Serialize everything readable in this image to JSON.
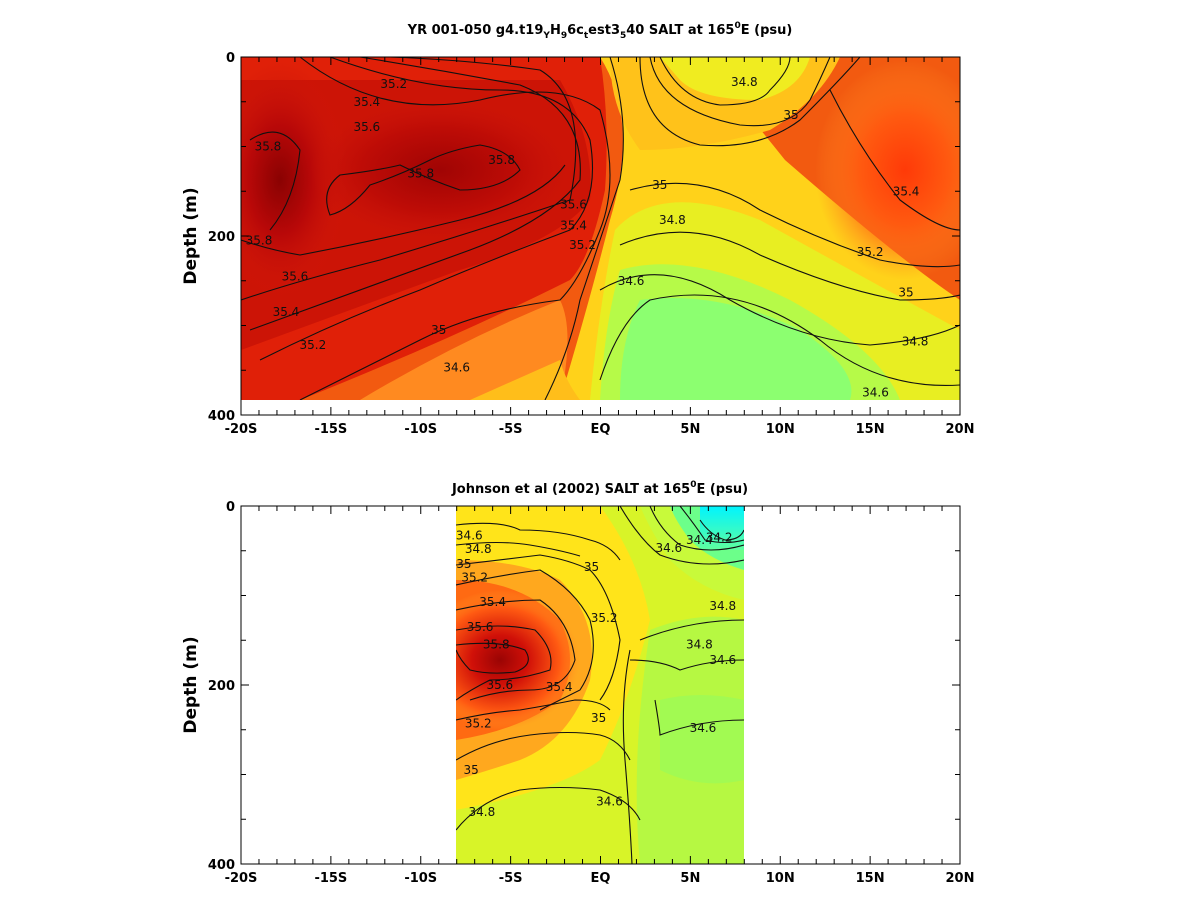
{
  "chart_data": [
    {
      "type": "heatmap",
      "title_main": "YR 001-050 g4.t19",
      "title_sub1": "Y",
      "title_mid1": "H",
      "title_sub2": "9",
      "title_mid2": "6c",
      "title_sub3": "t",
      "title_mid3": "est3",
      "title_sub4": "5",
      "title_mid4": "40 SALT at 165",
      "title_sup": "0",
      "title_end": "E (psu)",
      "ylabel": "Depth (m)",
      "x_ticks": [
        "-20S",
        "-15S",
        "-10S",
        "-5S",
        "EQ",
        "5N",
        "10N",
        "15N",
        "20N"
      ],
      "y_ticks": [
        "0",
        "200",
        "400"
      ],
      "xlim": [
        -20,
        20
      ],
      "ylim": [
        0,
        400
      ],
      "y_reversed": true,
      "data_extent": {
        "lat": [
          -20,
          20
        ],
        "depth": [
          0,
          385
        ]
      },
      "colorscale": "salinity: cyan 34.2 – green 34.6 – yellow 34.9 – orange 35.2 – red 35.6 – dark red 35.9",
      "contour_levels": [
        34.6,
        34.8,
        35,
        35.2,
        35.4,
        35.6,
        35.8
      ],
      "contour_labels": [
        {
          "text": "35.2",
          "lat": -11.5,
          "depth": 30
        },
        {
          "text": "35.4",
          "lat": -13,
          "depth": 50
        },
        {
          "text": "35.6",
          "lat": -13,
          "depth": 78
        },
        {
          "text": "35.8",
          "lat": -18.5,
          "depth": 100
        },
        {
          "text": "35.8",
          "lat": -10,
          "depth": 130
        },
        {
          "text": "35.8",
          "lat": -5.5,
          "depth": 115
        },
        {
          "text": "35.6",
          "lat": -1.5,
          "depth": 165
        },
        {
          "text": "35.4",
          "lat": -1.5,
          "depth": 188
        },
        {
          "text": "35.2",
          "lat": -1,
          "depth": 210
        },
        {
          "text": "35.8",
          "lat": -19,
          "depth": 205
        },
        {
          "text": "35.6",
          "lat": -17,
          "depth": 245
        },
        {
          "text": "35.4",
          "lat": -17.5,
          "depth": 285
        },
        {
          "text": "35.2",
          "lat": -16,
          "depth": 322
        },
        {
          "text": "35",
          "lat": -9,
          "depth": 305
        },
        {
          "text": "34.6",
          "lat": -8,
          "depth": 347
        },
        {
          "text": "34.6",
          "lat": 1.7,
          "depth": 250
        },
        {
          "text": "34.8",
          "lat": 8,
          "depth": 28
        },
        {
          "text": "35",
          "lat": 10.6,
          "depth": 65
        },
        {
          "text": "35",
          "lat": 3.3,
          "depth": 143
        },
        {
          "text": "34.8",
          "lat": 4,
          "depth": 182
        },
        {
          "text": "35.4",
          "lat": 17,
          "depth": 150
        },
        {
          "text": "35.2",
          "lat": 15,
          "depth": 218
        },
        {
          "text": "35",
          "lat": 17,
          "depth": 263
        },
        {
          "text": "34.8",
          "lat": 17.5,
          "depth": 318
        },
        {
          "text": "34.6",
          "lat": 15.3,
          "depth": 375
        }
      ]
    },
    {
      "type": "heatmap",
      "title_main": "Johnson et al (2002) SALT at 165",
      "title_sup": "0",
      "title_end": "E (psu)",
      "ylabel": "Depth (m)",
      "x_ticks": [
        "-20S",
        "-15S",
        "-10S",
        "-5S",
        "EQ",
        "5N",
        "10N",
        "15N",
        "20N"
      ],
      "y_ticks": [
        "0",
        "200",
        "400"
      ],
      "xlim": [
        -20,
        20
      ],
      "ylim": [
        0,
        400
      ],
      "y_reversed": true,
      "data_extent": {
        "lat": [
          -8,
          8
        ],
        "depth": [
          0,
          400
        ]
      },
      "colorscale": "salinity: cyan 34.2 – green 34.6 – yellow 34.9 – orange 35.2 – red 35.6 – dark red 35.9",
      "contour_levels": [
        34.2,
        34.4,
        34.6,
        34.8,
        35,
        35.2,
        35.4,
        35.6,
        35.8
      ],
      "contour_labels": [
        {
          "text": "34.6",
          "lat": -7.3,
          "depth": 33
        },
        {
          "text": "34.8",
          "lat": -6.8,
          "depth": 48
        },
        {
          "text": "35",
          "lat": -7.6,
          "depth": 65
        },
        {
          "text": "35.2",
          "lat": -7,
          "depth": 80
        },
        {
          "text": "35.4",
          "lat": -6,
          "depth": 107
        },
        {
          "text": "35.6",
          "lat": -6.7,
          "depth": 135
        },
        {
          "text": "35.8",
          "lat": -5.8,
          "depth": 155
        },
        {
          "text": "35.6",
          "lat": -5.6,
          "depth": 200
        },
        {
          "text": "35.4",
          "lat": -2.3,
          "depth": 202
        },
        {
          "text": "35.2",
          "lat": 0.2,
          "depth": 125
        },
        {
          "text": "35",
          "lat": -0.5,
          "depth": 68
        },
        {
          "text": "35.2",
          "lat": -6.8,
          "depth": 243
        },
        {
          "text": "35",
          "lat": -7.2,
          "depth": 295
        },
        {
          "text": "34.8",
          "lat": -6.6,
          "depth": 342
        },
        {
          "text": "35",
          "lat": -0.1,
          "depth": 237
        },
        {
          "text": "34.6",
          "lat": 0.5,
          "depth": 330
        },
        {
          "text": "34.6",
          "lat": 3.8,
          "depth": 47
        },
        {
          "text": "34.4",
          "lat": 5.5,
          "depth": 38
        },
        {
          "text": "34.2",
          "lat": 6.6,
          "depth": 35
        },
        {
          "text": "34.8",
          "lat": 6.8,
          "depth": 112
        },
        {
          "text": "34.8",
          "lat": 5.5,
          "depth": 155
        },
        {
          "text": "34.6",
          "lat": 6.8,
          "depth": 172
        },
        {
          "text": "34.6",
          "lat": 5.7,
          "depth": 248
        }
      ]
    }
  ]
}
